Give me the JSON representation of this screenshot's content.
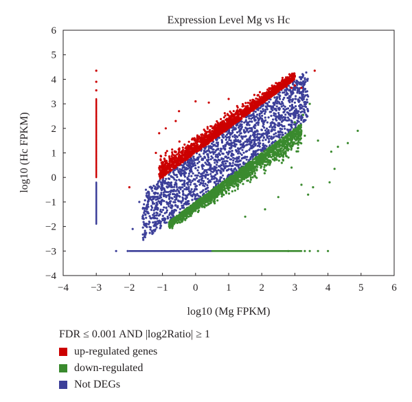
{
  "chart_data": {
    "type": "scatter",
    "title": "Expression Level Mg vs Hc",
    "xlabel": "log10 (Mg FPKM)",
    "ylabel": "log10 (Hc FPKM)",
    "xlim": [
      -4,
      6
    ],
    "ylim": [
      -4,
      6
    ],
    "xticks": [
      -4,
      -3,
      -2,
      -1,
      0,
      1,
      2,
      3,
      4,
      5,
      6
    ],
    "yticks": [
      -4,
      -3,
      -2,
      -1,
      0,
      1,
      2,
      3,
      4,
      5,
      6
    ],
    "grid": false,
    "legend_title": "FDR ≤ 0.001 AND |log2Ratio| ≥ 1",
    "legend_position": "bottom-left, outside plot",
    "series": [
      {
        "name": "up-regulated genes",
        "color": "#cc0000",
        "regions": [
          {
            "kind": "band",
            "x": [
              -1.1,
              3.0
            ],
            "y_above_diagonal": [
              1.0,
              1.9
            ]
          },
          {
            "kind": "vertical_line",
            "x": -3,
            "y": [
              0.0,
              3.2
            ]
          }
        ],
        "points": [
          [
            -3,
            4.35
          ],
          [
            -3,
            3.9
          ],
          [
            -3,
            3.55
          ],
          [
            3.6,
            4.35
          ],
          [
            3.0,
            3.75
          ],
          [
            2.9,
            3.65
          ],
          [
            2.75,
            3.7
          ],
          [
            3.2,
            3.65
          ],
          [
            -0.5,
            2.7
          ],
          [
            0.0,
            3.1
          ],
          [
            0.4,
            3.05
          ],
          [
            1.0,
            3.2
          ],
          [
            -1.1,
            1.8
          ],
          [
            -0.9,
            2.0
          ],
          [
            -0.6,
            2.3
          ],
          [
            -1.2,
            1.0
          ],
          [
            -2.0,
            -0.4
          ]
        ]
      },
      {
        "name": "down-regulated",
        "color": "#3a8a2e",
        "regions": [
          {
            "kind": "band",
            "x": [
              -0.8,
              3.2
            ],
            "y_below_diagonal": [
              1.0,
              1.9
            ]
          },
          {
            "kind": "horizontal_line",
            "y": -3,
            "x": [
              0.5,
              3.2
            ]
          }
        ],
        "points": [
          [
            4.9,
            1.9
          ],
          [
            4.6,
            1.4
          ],
          [
            4.3,
            1.25
          ],
          [
            4.1,
            1.05
          ],
          [
            4.2,
            0.35
          ],
          [
            4.05,
            -0.2
          ],
          [
            3.55,
            -0.4
          ],
          [
            3.4,
            -0.7
          ],
          [
            3.2,
            -0.3
          ],
          [
            3.0,
            2.25
          ],
          [
            3.3,
            1.7
          ],
          [
            3.7,
            1.5
          ],
          [
            3.45,
            3.0
          ],
          [
            3.25,
            2.55
          ],
          [
            3.1,
            1.2
          ],
          [
            2.9,
            0.4
          ],
          [
            2.5,
            -0.8
          ],
          [
            2.1,
            -1.3
          ],
          [
            1.5,
            -1.6
          ],
          [
            4.0,
            -3.0
          ],
          [
            3.3,
            -3.0
          ],
          [
            3.45,
            -3.0
          ],
          [
            3.7,
            -3.0
          ],
          [
            2.8,
            -3.0
          ]
        ]
      },
      {
        "name": "Not DEGs",
        "color": "#3c3f99",
        "regions": [
          {
            "kind": "band",
            "x": [
              -1.6,
              3.4
            ],
            "y_within_diagonal": [
              -1.0,
              1.0
            ]
          },
          {
            "kind": "vertical_line",
            "x": -3,
            "y": [
              -1.9,
              -0.2
            ]
          },
          {
            "kind": "horizontal_line",
            "y": -3,
            "x": [
              -2.0,
              0.5
            ]
          }
        ],
        "points": [
          [
            -2.4,
            -3.0
          ],
          [
            -2.05,
            -3.0
          ],
          [
            -1.9,
            -2.1
          ],
          [
            -1.6,
            -1.6
          ],
          [
            -1.4,
            -1.8
          ],
          [
            3.4,
            3.3
          ],
          [
            3.25,
            3.2
          ],
          [
            3.0,
            3.05
          ],
          [
            -1.5,
            -0.5
          ],
          [
            -1.7,
            -1.0
          ]
        ]
      }
    ]
  }
}
